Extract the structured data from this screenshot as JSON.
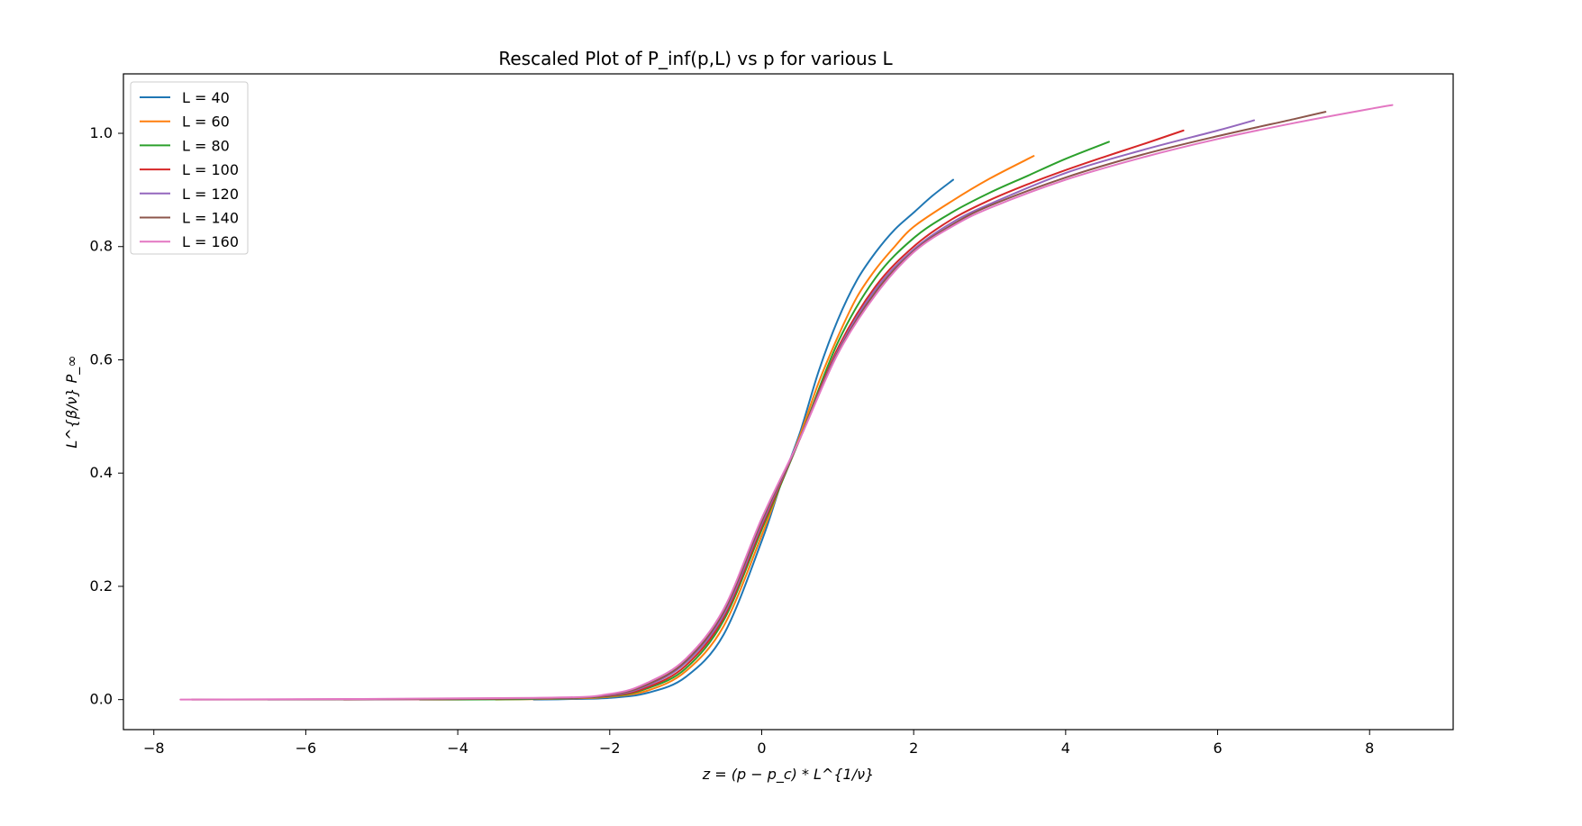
{
  "chart_data": {
    "type": "line",
    "title": "Rescaled Plot of P_inf(p,L) vs p for various L",
    "xlabel": "z = (p − p_c) * L^{1/ν}",
    "ylabel": "L^{β/ν} P_∞",
    "xlim": [
      -8.4,
      9.1
    ],
    "ylim": [
      -0.053,
      1.105
    ],
    "xticks": [
      "−8",
      "−6",
      "−4",
      "−2",
      "0",
      "2",
      "4",
      "6",
      "8"
    ],
    "yticks": [
      "0.0",
      "0.2",
      "0.4",
      "0.6",
      "0.8",
      "1.0"
    ],
    "xtick_values": [
      -8,
      -6,
      -4,
      -2,
      0,
      2,
      4,
      6,
      8
    ],
    "ytick_values": [
      0.0,
      0.2,
      0.4,
      0.6,
      0.8,
      1.0
    ],
    "grid": false,
    "legend_position": "top-left",
    "series": [
      {
        "name": "L = 40",
        "color": "#1f77b4",
        "x": [
          -3.0,
          -2.5,
          -2.0,
          -1.5,
          -1.0,
          -0.5,
          0.0,
          0.25,
          0.5,
          0.75,
          1.0,
          1.25,
          1.5,
          1.75,
          2.0,
          2.25,
          2.52
        ],
        "y": [
          0.0,
          0.001,
          0.003,
          0.012,
          0.04,
          0.115,
          0.28,
          0.38,
          0.47,
          0.58,
          0.67,
          0.74,
          0.79,
          0.83,
          0.86,
          0.89,
          0.918
        ]
      },
      {
        "name": "L = 60",
        "color": "#ff7f0e",
        "x": [
          -3.5,
          -2.5,
          -2.0,
          -1.5,
          -1.0,
          -0.5,
          0.0,
          0.25,
          0.5,
          0.75,
          1.0,
          1.25,
          1.5,
          1.75,
          2.0,
          2.5,
          3.0,
          3.58
        ],
        "y": [
          0.0,
          0.002,
          0.005,
          0.016,
          0.05,
          0.13,
          0.29,
          0.38,
          0.465,
          0.56,
          0.64,
          0.71,
          0.76,
          0.8,
          0.835,
          0.88,
          0.92,
          0.96
        ]
      },
      {
        "name": "L = 80",
        "color": "#2ca02c",
        "x": [
          -4.5,
          -3.0,
          -2.0,
          -1.5,
          -1.0,
          -0.5,
          0.0,
          0.5,
          1.0,
          1.5,
          2.0,
          2.5,
          3.0,
          3.5,
          4.0,
          4.57
        ],
        "y": [
          0.0,
          0.001,
          0.006,
          0.02,
          0.055,
          0.14,
          0.3,
          0.46,
          0.63,
          0.745,
          0.815,
          0.86,
          0.895,
          0.925,
          0.955,
          0.985
        ]
      },
      {
        "name": "L = 100",
        "color": "#d62728",
        "x": [
          -5.5,
          -3.0,
          -2.0,
          -1.5,
          -1.0,
          -0.5,
          0.0,
          0.5,
          1.0,
          1.5,
          2.0,
          2.5,
          3.0,
          3.5,
          4.0,
          4.5,
          5.0,
          5.55
        ],
        "y": [
          0.0,
          0.002,
          0.007,
          0.022,
          0.06,
          0.145,
          0.305,
          0.46,
          0.62,
          0.73,
          0.8,
          0.848,
          0.882,
          0.91,
          0.935,
          0.958,
          0.98,
          1.005
        ]
      },
      {
        "name": "L = 120",
        "color": "#9467bd",
        "x": [
          -6.5,
          -3.0,
          -2.0,
          -1.5,
          -1.0,
          -0.5,
          0.0,
          0.5,
          1.0,
          1.5,
          2.0,
          2.5,
          3.0,
          4.0,
          5.0,
          6.0,
          6.48
        ],
        "y": [
          0.0,
          0.002,
          0.008,
          0.025,
          0.065,
          0.15,
          0.31,
          0.46,
          0.615,
          0.725,
          0.795,
          0.842,
          0.875,
          0.93,
          0.97,
          1.005,
          1.023
        ]
      },
      {
        "name": "L = 140",
        "color": "#8c564b",
        "x": [
          -7.5,
          -3.0,
          -2.0,
          -1.5,
          -1.0,
          -0.5,
          0.0,
          0.5,
          1.0,
          1.5,
          2.0,
          2.5,
          3.0,
          4.0,
          5.0,
          6.0,
          7.0,
          7.42
        ],
        "y": [
          0.0,
          0.002,
          0.009,
          0.027,
          0.068,
          0.155,
          0.315,
          0.46,
          0.612,
          0.72,
          0.792,
          0.838,
          0.872,
          0.922,
          0.962,
          0.995,
          1.025,
          1.038
        ]
      },
      {
        "name": "L = 160",
        "color": "#e377c2",
        "x": [
          -7.65,
          -3.0,
          -2.0,
          -1.5,
          -1.0,
          -0.5,
          0.0,
          0.5,
          1.0,
          1.5,
          2.0,
          2.5,
          3.0,
          4.0,
          5.0,
          6.0,
          7.0,
          8.0,
          8.3
        ],
        "y": [
          0.0,
          0.003,
          0.01,
          0.03,
          0.072,
          0.16,
          0.32,
          0.46,
          0.61,
          0.715,
          0.79,
          0.835,
          0.868,
          0.918,
          0.957,
          0.99,
          1.018,
          1.043,
          1.05
        ]
      }
    ]
  }
}
